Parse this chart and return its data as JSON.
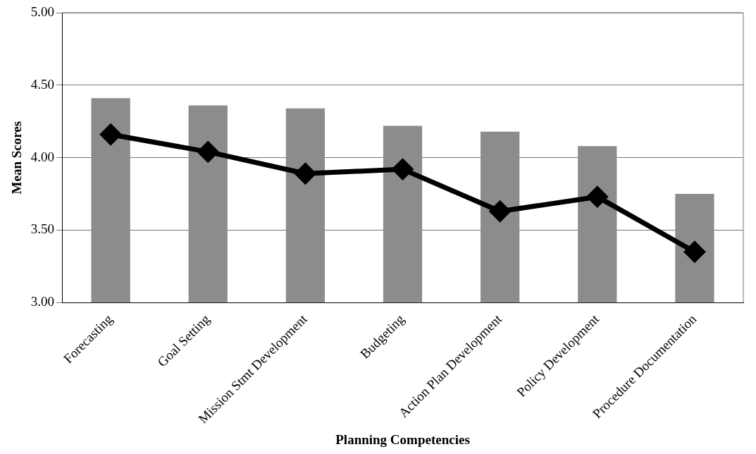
{
  "chart_data": {
    "type": "bar",
    "xlabel": "Planning Competencies",
    "ylabel": "Mean Scores",
    "categories": [
      "Forecasting",
      "Goal Setting",
      "Mission Stmt Development",
      "Budgeting",
      "Action Plan Development",
      "Policy Development",
      "Procedure Documentation"
    ],
    "series": [
      {
        "color": "#8c8c8c",
        "values": [
          4.41,
          4.36,
          4.34,
          4.22,
          4.18,
          4.08,
          3.75
        ]
      },
      {
        "type": "line",
        "color": "#000000",
        "marker": "diamond",
        "values": [
          4.16,
          4.04,
          3.89,
          3.92,
          3.63,
          3.73,
          3.35
        ]
      }
    ],
    "ylim": [
      3.0,
      5.0
    ],
    "yticks": [
      {
        "value": 3,
        "label": "3.00"
      },
      {
        "value": 3.5,
        "label": "3.50"
      },
      {
        "value": 4,
        "label": "4.00"
      },
      {
        "value": 4.5,
        "label": "4.50"
      },
      {
        "value": 5,
        "label": "5.00"
      }
    ],
    "grid": "y",
    "legend": false
  }
}
